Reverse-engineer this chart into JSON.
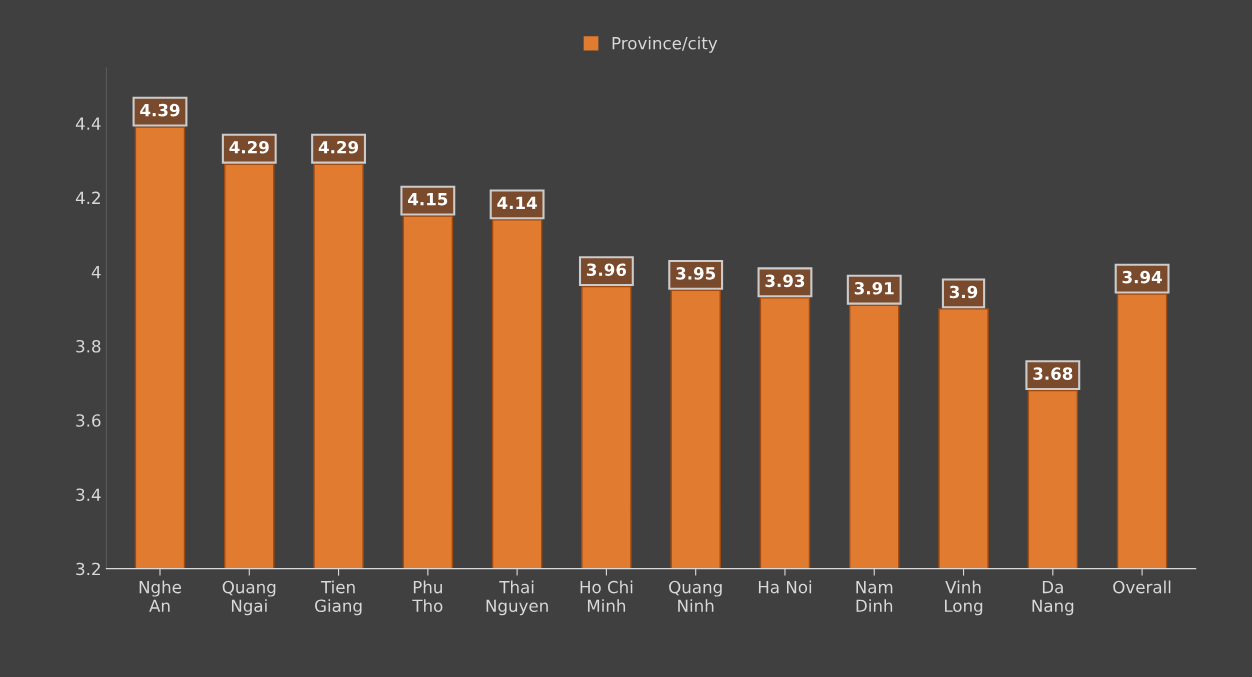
{
  "chart_data": {
    "type": "bar",
    "categories": [
      "Nghe An",
      "Quang Ngai",
      "Tien Giang",
      "Phu Tho",
      "Thai Nguyen",
      "Ho Chi Minh",
      "Quang Ninh",
      "Ha Noi",
      "Nam Dinh",
      "Vinh Long",
      "Da Nang",
      "Overall"
    ],
    "series": [
      {
        "name": "Province/city",
        "color": "#e07b30",
        "values": [
          4.39,
          4.29,
          4.29,
          4.15,
          4.14,
          3.96,
          3.95,
          3.93,
          3.91,
          3.9,
          3.68,
          3.94
        ]
      }
    ],
    "ylim": [
      3.2,
      4.55
    ],
    "yticks": [
      3.2,
      3.4,
      3.6,
      3.8,
      4,
      4.2,
      4.4
    ],
    "data_labels": true,
    "legend": "top",
    "grid": false
  }
}
